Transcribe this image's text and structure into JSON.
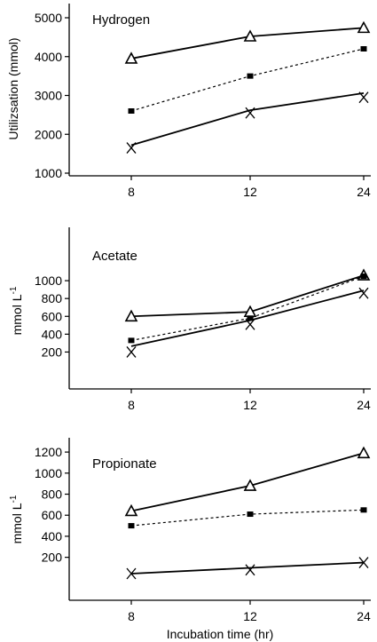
{
  "chart_data": [
    {
      "type": "line",
      "title": "Hydrogen",
      "ylabel": "Utilizsation (mmol)",
      "xlabel": "",
      "categories": [
        "8",
        "12",
        "24"
      ],
      "yticks": [
        1000,
        2000,
        3000,
        4000,
        5000
      ],
      "ylim": [
        1000,
        5000
      ],
      "series": [
        {
          "marker": "triangle",
          "line": "solid",
          "values": [
            3950,
            4520,
            4740
          ]
        },
        {
          "marker": "square",
          "line": "dotted",
          "values": [
            2600,
            3500,
            4200
          ]
        },
        {
          "marker": "x",
          "line": "solid",
          "values": [
            1650,
            2550,
            2950
          ],
          "line_values": [
            1720,
            2620,
            3060
          ]
        }
      ]
    },
    {
      "type": "line",
      "title": "Acetate",
      "ylabel": "mmol L-1",
      "ylabel_main": "mmol L",
      "ylabel_sup": "-1",
      "xlabel": "",
      "categories": [
        "8",
        "12",
        "24"
      ],
      "yticks": [
        200,
        400,
        600,
        800,
        1000
      ],
      "ylim": [
        55,
        1230
      ],
      "series": [
        {
          "marker": "triangle",
          "line": "solid",
          "values": [
            600,
            650,
            1060
          ]
        },
        {
          "marker": "square",
          "line": "dotted",
          "values": [
            330,
            580,
            1050
          ]
        },
        {
          "marker": "x",
          "line": "solid",
          "values": [
            200,
            510,
            860
          ],
          "line_values": [
            265,
            555,
            890
          ]
        }
      ]
    },
    {
      "type": "line",
      "title": "Propionate",
      "ylabel": "mmol L-1",
      "ylabel_main": "mmol L",
      "ylabel_sup": "-1",
      "xlabel": "Incubation time (hr)",
      "categories": [
        "8",
        "12",
        "24"
      ],
      "yticks": [
        200,
        400,
        600,
        800,
        1000,
        1200
      ],
      "ylim": [
        45,
        1260
      ],
      "series": [
        {
          "marker": "triangle",
          "line": "solid",
          "values": [
            640,
            880,
            1190
          ]
        },
        {
          "marker": "square",
          "line": "dotted",
          "values": [
            500,
            610,
            650
          ]
        },
        {
          "marker": "x",
          "line": "solid",
          "values": [
            45,
            80,
            150
          ],
          "line_values": [
            45,
            100,
            150
          ]
        }
      ]
    }
  ]
}
